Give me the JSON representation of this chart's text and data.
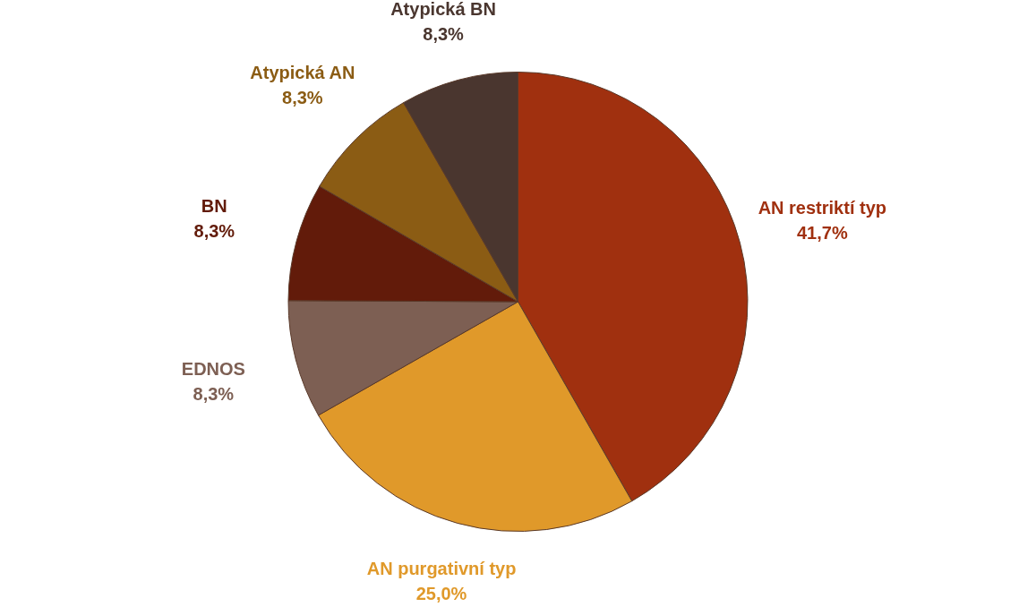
{
  "chart_data": {
    "type": "pie",
    "categories": [
      "AN restriktí typ",
      "AN purgativní typ",
      "EDNOS",
      "BN",
      "Atypická AN",
      "Atypická BN"
    ],
    "values": [
      41.7,
      25.0,
      8.3,
      8.3,
      8.3,
      8.3
    ],
    "colors": [
      "#a0300f",
      "#e0992a",
      "#7d5f53",
      "#621b0a",
      "#8b5c14",
      "#4a362f"
    ],
    "value_labels": [
      "41,7%",
      "25,0%",
      "8,3%",
      "8,3%",
      "8,3%",
      "8,3%"
    ],
    "legend": false
  }
}
